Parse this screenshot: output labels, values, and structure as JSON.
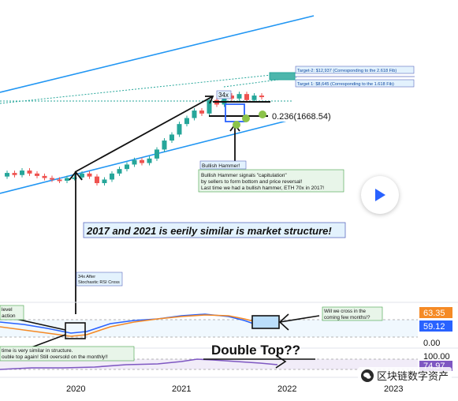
{
  "chart_data": {
    "type": "candlestick",
    "instrument": "ETH",
    "x_ticks": [
      "2020",
      "2021",
      "2022",
      "2023"
    ],
    "price_axis": {
      "scale": "log"
    },
    "channel": {
      "upper_line": "rising",
      "lower_line": "rising"
    },
    "fib_levels": [
      {
        "label": "0.236(1668.54)",
        "value": 1668.54
      },
      {
        "label": "Target 1: $8,645 (Corresponding to the 1.618 Fib)",
        "value": 8645
      },
      {
        "label": "Target-2: $12,937 (Corresponding to the 2.618 Fib)",
        "value": 12937
      }
    ],
    "candles": [
      {
        "o": 1.0,
        "c": 1.12,
        "up": true
      },
      {
        "o": 1.12,
        "c": 1.05,
        "up": false
      },
      {
        "o": 1.05,
        "c": 1.2,
        "up": true
      },
      {
        "o": 1.2,
        "c": 1.1,
        "up": false
      },
      {
        "o": 1.1,
        "c": 1.02,
        "up": false
      },
      {
        "o": 1.02,
        "c": 0.95,
        "up": false
      },
      {
        "o": 0.95,
        "c": 0.9,
        "up": false
      },
      {
        "o": 0.9,
        "c": 0.86,
        "up": false
      },
      {
        "o": 0.86,
        "c": 0.95,
        "up": true
      },
      {
        "o": 0.95,
        "c": 0.97,
        "up": true
      },
      {
        "o": 0.97,
        "c": 1.1,
        "up": true
      },
      {
        "o": 1.1,
        "c": 1.0,
        "up": false
      },
      {
        "o": 1.0,
        "c": 0.78,
        "up": false
      },
      {
        "o": 0.78,
        "c": 0.9,
        "up": true
      },
      {
        "o": 0.9,
        "c": 1.1,
        "up": true
      },
      {
        "o": 1.1,
        "c": 1.25,
        "up": true
      },
      {
        "o": 1.25,
        "c": 1.4,
        "up": true
      },
      {
        "o": 1.4,
        "c": 1.55,
        "up": true
      },
      {
        "o": 1.55,
        "c": 1.45,
        "up": false
      },
      {
        "o": 1.45,
        "c": 1.6,
        "up": true
      },
      {
        "o": 1.6,
        "c": 1.9,
        "up": true
      },
      {
        "o": 1.9,
        "c": 2.2,
        "up": true
      },
      {
        "o": 2.2,
        "c": 2.4,
        "up": true
      },
      {
        "o": 2.4,
        "c": 2.75,
        "up": true
      },
      {
        "o": 2.75,
        "c": 2.95,
        "up": true
      },
      {
        "o": 2.95,
        "c": 3.2,
        "up": true
      },
      {
        "o": 3.2,
        "c": 3.1,
        "up": false
      },
      {
        "o": 3.1,
        "c": 3.55,
        "up": true
      },
      {
        "o": 3.55,
        "c": 3.4,
        "up": false
      },
      {
        "o": 3.4,
        "c": 3.7,
        "up": true
      },
      {
        "o": 3.7,
        "c": 3.6,
        "up": false
      },
      {
        "o": 3.6,
        "c": 3.75,
        "up": true
      },
      {
        "o": 3.75,
        "c": 3.55,
        "up": false
      },
      {
        "o": 3.55,
        "c": 3.7,
        "up": true
      },
      {
        "o": 3.7,
        "c": 3.65,
        "up": false
      }
    ],
    "annotations": {
      "headline": "2017 and 2021 is eerily similar is market structure!",
      "multiplier": "34x",
      "bullish_title": "Bullish Hammer!",
      "bullish_body": [
        "Bullish Hammer signals \"capitulation\"",
        "by sellers to form bottom and price reversal!",
        "Last time we had a bullish hammer, ETH 70x in 2017!"
      ],
      "after_cross": [
        "34x After",
        "Stochastic RSI Cross"
      ],
      "cross_question": [
        "Will we cross in the",
        "coming few months!?"
      ],
      "left_clip": [
        "level",
        "action"
      ],
      "bottom_left": [
        "time is very similar in structure.",
        "ouble top again! Still oversold on the monthly!!"
      ],
      "double_top": "Double Top??"
    },
    "stoch_rsi": {
      "values": [
        "63.35",
        "59.12",
        "0.00"
      ],
      "colors": [
        "#f58a25",
        "#2962ff"
      ]
    },
    "rsi": {
      "values": [
        "100.00",
        "74.97"
      ],
      "color": "#7e57c2"
    }
  },
  "ui": {
    "play_icon": "play-icon",
    "watermark_text": "区块链数字资产",
    "watermark_icon": "wechat-icon"
  }
}
